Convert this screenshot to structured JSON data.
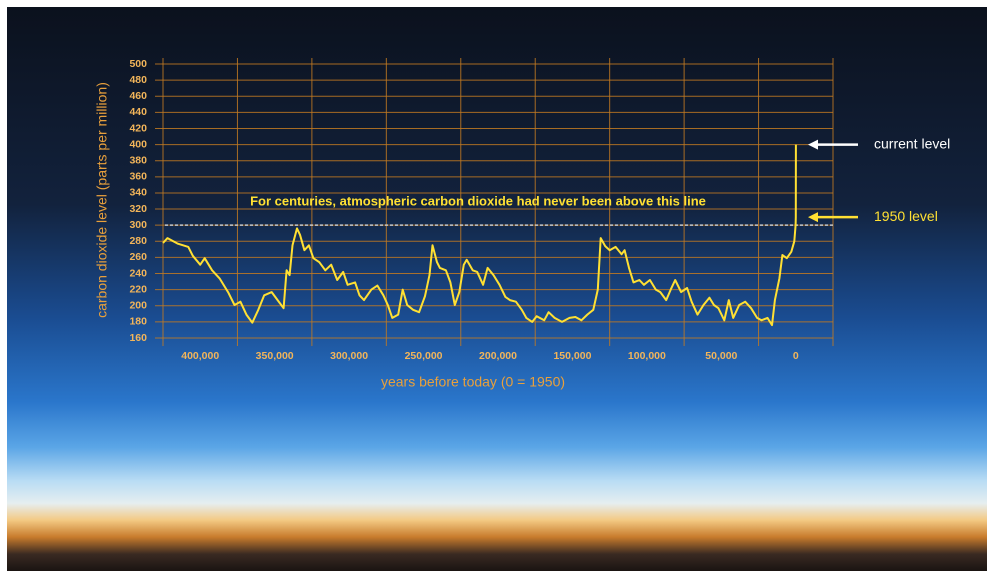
{
  "chart_data": {
    "type": "line",
    "y_label": "carbon dioxide level (parts per million)",
    "x_label": "years before today (0 = 1950)",
    "x": [
      425000,
      422000,
      415000,
      408000,
      405000,
      400000,
      397000,
      392000,
      387000,
      381000,
      377000,
      373000,
      369000,
      365000,
      361000,
      357000,
      352000,
      348000,
      344000,
      342000,
      340000,
      338000,
      335000,
      333000,
      330000,
      327000,
      324000,
      320000,
      316000,
      312000,
      308000,
      304000,
      301000,
      296000,
      293000,
      290000,
      285000,
      281000,
      277000,
      274000,
      271000,
      267000,
      264000,
      261000,
      257000,
      253000,
      249000,
      246000,
      244000,
      241000,
      239000,
      235000,
      232000,
      229000,
      226000,
      223000,
      221000,
      217000,
      214000,
      210000,
      207000,
      203000,
      199000,
      195000,
      192000,
      188000,
      184000,
      181000,
      177000,
      174000,
      169000,
      166000,
      162000,
      157000,
      152000,
      148000,
      144000,
      140000,
      136000,
      133000,
      131000,
      128000,
      125000,
      121000,
      117000,
      115000,
      112000,
      109000,
      105000,
      102000,
      98000,
      94000,
      91000,
      87000,
      84000,
      81000,
      77000,
      73000,
      70000,
      66000,
      62000,
      58000,
      55000,
      52000,
      48000,
      45000,
      42000,
      38000,
      34000,
      30000,
      26000,
      23000,
      19000,
      16000,
      14000,
      11000,
      9000,
      6000,
      3000,
      1000,
      100,
      0,
      -66
    ],
    "values": [
      278,
      284,
      277,
      273,
      262,
      251,
      259,
      244,
      234,
      216,
      201,
      205,
      189,
      179,
      195,
      213,
      217,
      207,
      197,
      244,
      238,
      275,
      296,
      288,
      269,
      275,
      259,
      254,
      244,
      251,
      232,
      242,
      226,
      229,
      213,
      207,
      220,
      225,
      213,
      201,
      185,
      189,
      220,
      201,
      195,
      192,
      212,
      238,
      275,
      254,
      247,
      244,
      229,
      201,
      217,
      251,
      257,
      244,
      242,
      226,
      247,
      238,
      226,
      211,
      207,
      205,
      195,
      185,
      180,
      187,
      182,
      192,
      185,
      180,
      185,
      186,
      182,
      189,
      195,
      220,
      284,
      274,
      269,
      273,
      264,
      269,
      247,
      229,
      232,
      226,
      232,
      220,
      217,
      207,
      220,
      232,
      217,
      222,
      205,
      189,
      201,
      210,
      201,
      197,
      182,
      207,
      185,
      201,
      205,
      197,
      185,
      182,
      185,
      176,
      207,
      234,
      263,
      259,
      267,
      280,
      300,
      310,
      400
    ],
    "color": "#ffe033",
    "xlim": [
      425000,
      -25000
    ],
    "xticks": [
      {
        "value": 400000,
        "label": "400,000"
      },
      {
        "value": 350000,
        "label": "350,000"
      },
      {
        "value": 300000,
        "label": "300,000"
      },
      {
        "value": 250000,
        "label": "250,000"
      },
      {
        "value": 200000,
        "label": "200,000"
      },
      {
        "value": 150000,
        "label": "150,000"
      },
      {
        "value": 100000,
        "label": "100,000"
      },
      {
        "value": 50000,
        "label": "50,000"
      },
      0
    ],
    "ylim": [
      160,
      500
    ],
    "yticks": [
      160,
      180,
      200,
      220,
      240,
      260,
      280,
      300,
      320,
      340,
      360,
      380,
      400,
      420,
      440,
      460,
      480,
      500
    ],
    "grid": true,
    "annotations": [
      {
        "text": "For centuries, atmospheric carbon dioxide had never been above this line",
        "value": 300,
        "color": "#ffe033"
      },
      {
        "text": "current level",
        "value": 400,
        "color": "#ffffff"
      },
      {
        "text": "1950 level",
        "value": 310,
        "color": "#ffe033"
      }
    ]
  }
}
